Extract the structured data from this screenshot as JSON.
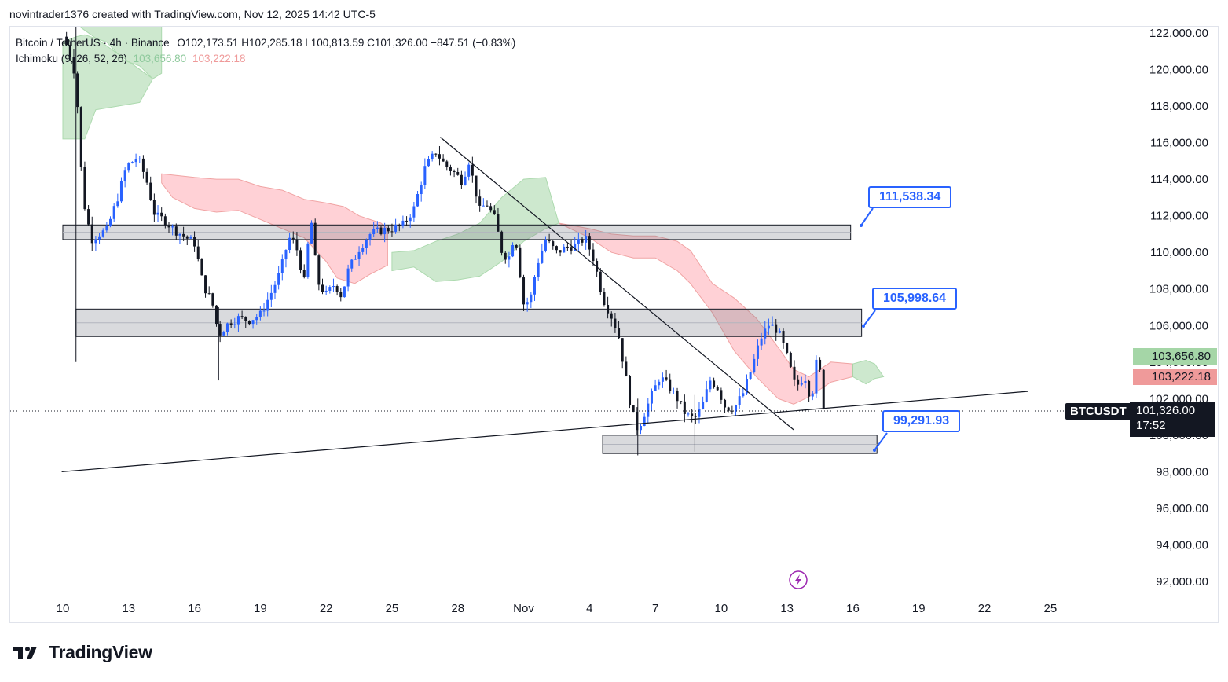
{
  "header": {
    "credit": "novintrader1376 created with TradingView.com, Nov 12, 2025 14:42 UTC-5"
  },
  "legend": {
    "symbol_line": "Bitcoin / TetherUS · 4h · Binance",
    "ohlc": "O102,173.51  H102,285.18  L100,813.59  C101,326.00  −847.51 (−0.83%)",
    "indicator": "Ichimoku (9, 26, 52, 26)",
    "ind_val1": "103,656.80",
    "ind_val2": "103,222.18"
  },
  "callouts": {
    "c1": "111,538.34",
    "c2": "105,998.64",
    "c3": "99,291.93"
  },
  "price_tags": {
    "span_a": "103,656.80",
    "span_b": "103,222.18",
    "symbol": "BTCUSDT",
    "last": "101,326.00",
    "countdown": "17:52"
  },
  "footer": {
    "brand": "TradingView"
  },
  "colors": {
    "up": "#2962ff",
    "down": "#131722",
    "cloud_green": "#c8e6c9",
    "cloud_red": "#ffcdd2",
    "accent": "#2962ff"
  },
  "chart_data": {
    "type": "candlestick",
    "title": "Bitcoin / TetherUS · 4h · Binance",
    "y_ticks": [
      "122,000.00",
      "120,000.00",
      "118,000.00",
      "116,000.00",
      "114,000.00",
      "112,000.00",
      "110,000.00",
      "108,000.00",
      "106,000.00",
      "104,000.00",
      "102,000.00",
      "100,000.00",
      "98,000.00",
      "96,000.00",
      "94,000.00",
      "92,000.00"
    ],
    "x_ticks": [
      "10",
      "13",
      "16",
      "19",
      "22",
      "25",
      "28",
      "Nov",
      "4",
      "7",
      "10",
      "13",
      "16",
      "19",
      "22",
      "25"
    ],
    "ylim": [
      90800,
      123000
    ],
    "zones": [
      {
        "from_day": 10.0,
        "to_day": 45.9,
        "low": 110700,
        "high": 111500
      },
      {
        "from_day": 10.6,
        "to_day": 46.4,
        "low": 105400,
        "high": 106900
      },
      {
        "from_day": 34.6,
        "to_day": 47.1,
        "low": 99000,
        "high": 100000
      }
    ],
    "trendlines": [
      {
        "from": [
          9.95,
          98000
        ],
        "to": [
          54.0,
          102400
        ]
      },
      {
        "from": [
          27.2,
          116300
        ],
        "to": [
          43.3,
          100300
        ]
      }
    ],
    "last_price": 101326.0,
    "ichimoku": {
      "span_a": 103656.8,
      "span_b": 103222.18
    },
    "cloud_segments": [
      {
        "color": "green",
        "pts": [
          [
            10,
            121500
          ],
          [
            10.6,
            121800
          ],
          [
            11,
            121900
          ],
          [
            12,
            121500
          ],
          [
            12.8,
            120500
          ],
          [
            13.5,
            120200
          ],
          [
            14.1,
            119500
          ],
          [
            14.5,
            119800
          ],
          [
            14.5,
            123000
          ],
          [
            10,
            123000
          ]
        ],
        "lower": [
          [
            10,
            116200
          ],
          [
            11,
            116200
          ],
          [
            11.5,
            117800
          ],
          [
            12.5,
            118000
          ],
          [
            13.5,
            118200
          ],
          [
            14.1,
            119500
          ]
        ]
      },
      {
        "color": "red",
        "upper": [
          [
            14.5,
            114300
          ],
          [
            16,
            114100
          ],
          [
            17,
            114000
          ],
          [
            18,
            114000
          ],
          [
            19,
            113600
          ],
          [
            20,
            113400
          ],
          [
            21,
            112900
          ],
          [
            22,
            112700
          ],
          [
            22.8,
            112500
          ],
          [
            23.5,
            112000
          ],
          [
            24.5,
            111600
          ],
          [
            24.8,
            111300
          ]
        ],
        "lower": [
          [
            14.5,
            113800
          ],
          [
            15,
            113000
          ],
          [
            16,
            112400
          ],
          [
            17,
            112200
          ],
          [
            18,
            112300
          ],
          [
            19,
            111800
          ],
          [
            20,
            111300
          ],
          [
            21,
            110800
          ],
          [
            22,
            109500
          ],
          [
            22.5,
            108600
          ],
          [
            23.3,
            108300
          ],
          [
            24,
            108800
          ],
          [
            24.8,
            109300
          ]
        ]
      },
      {
        "color": "green",
        "upper": [
          [
            25,
            110000
          ],
          [
            26,
            110100
          ],
          [
            27,
            110600
          ],
          [
            28,
            111000
          ],
          [
            29,
            111600
          ],
          [
            30,
            113000
          ],
          [
            31,
            114000
          ],
          [
            32,
            114100
          ],
          [
            32.6,
            111600
          ]
        ],
        "lower": [
          [
            25,
            109000
          ],
          [
            26,
            109200
          ],
          [
            27,
            108400
          ],
          [
            28,
            108500
          ],
          [
            29,
            108700
          ],
          [
            30,
            109500
          ],
          [
            31,
            110600
          ],
          [
            32,
            111300
          ],
          [
            32.6,
            111600
          ]
        ]
      },
      {
        "color": "red",
        "upper": [
          [
            32.6,
            111600
          ],
          [
            34,
            111300
          ],
          [
            35,
            111000
          ],
          [
            36,
            110900
          ],
          [
            37,
            110900
          ],
          [
            38,
            110600
          ],
          [
            38.6,
            110100
          ],
          [
            39.6,
            108300
          ],
          [
            40.6,
            107500
          ],
          [
            41.6,
            106400
          ],
          [
            42.6,
            104800
          ],
          [
            43.3,
            103600
          ],
          [
            44,
            103200
          ],
          [
            45,
            104000
          ],
          [
            46,
            103900
          ]
        ],
        "lower": [
          [
            32.6,
            111600
          ],
          [
            34,
            110800
          ],
          [
            35,
            110000
          ],
          [
            36,
            109700
          ],
          [
            37,
            109700
          ],
          [
            38,
            109000
          ],
          [
            38.6,
            108300
          ],
          [
            39.6,
            106700
          ],
          [
            40.6,
            104600
          ],
          [
            41.6,
            103200
          ],
          [
            42.6,
            102000
          ],
          [
            43.3,
            101700
          ],
          [
            44,
            102100
          ],
          [
            45,
            102900
          ],
          [
            46,
            103200
          ]
        ]
      },
      {
        "color": "green",
        "upper": [
          [
            46,
            103900
          ],
          [
            46.6,
            104100
          ],
          [
            47,
            103900
          ],
          [
            47.4,
            103200
          ]
        ],
        "lower": [
          [
            46,
            103200
          ],
          [
            46.6,
            102800
          ],
          [
            47,
            103100
          ],
          [
            47.4,
            103200
          ]
        ]
      }
    ]
  }
}
